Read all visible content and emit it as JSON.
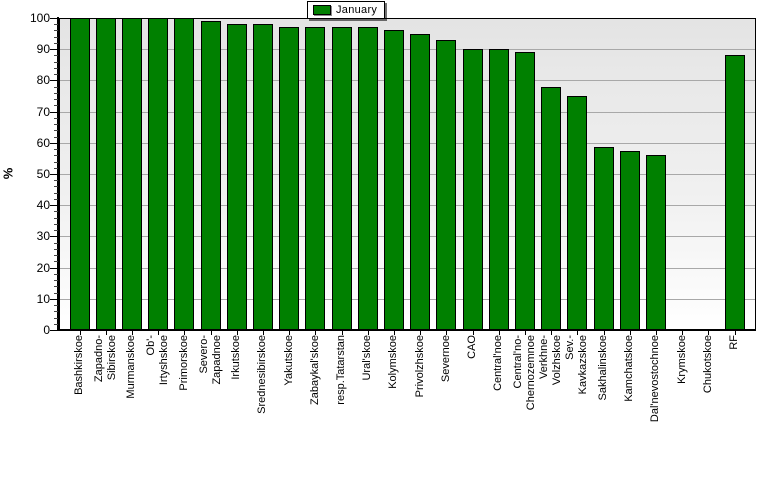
{
  "chart_data": {
    "type": "bar",
    "title": "",
    "ylabel": "%",
    "ylim": [
      0,
      100
    ],
    "ytick_step": 10,
    "grid": true,
    "legend": {
      "position": "top-center",
      "entries": [
        {
          "label": "January",
          "color": "#008000"
        }
      ]
    },
    "categories": [
      "Bashkirskoe",
      "Zapadno-Sibirskoe",
      "Murmanskoe",
      "Ob'-Irtyshskoe",
      "Primorskoe",
      "Severo-Zapadnoe",
      "Irkutskoe",
      "Srednesibirskoe",
      "Yakutskoe",
      "Zabaykal'skoe",
      "resp.Tatarstan",
      "Ural'skoe",
      "Kolymskoe",
      "Privolzhskoe",
      "Severnoe",
      "CAO",
      "Central'noe",
      "Central'no-Chernozemnoe",
      "Verkhne-Volzhskoe",
      "Sev.-Kavkazskoe",
      "Sakhalinskoe",
      "Kamchatskoe",
      "Dal'nevostochnoe",
      "Krymskoe",
      "Chukotskoe",
      "RF"
    ],
    "label_lines": [
      [
        "Bashkirskoe"
      ],
      [
        "Zapadno-",
        "Sibirskoe"
      ],
      [
        "Murmanskoe"
      ],
      [
        "Ob'-",
        "Irtyshskoe"
      ],
      [
        "Primorskoe"
      ],
      [
        "Severo-",
        "Zapadnoe"
      ],
      [
        "Irkutskoe"
      ],
      [
        "Srednesibirskoe"
      ],
      [
        "Yakutskoe"
      ],
      [
        "Zabaykal'skoe"
      ],
      [
        "resp.Tatarstan"
      ],
      [
        "Ural'skoe"
      ],
      [
        "Kolymskoe"
      ],
      [
        "Privolzhskoe"
      ],
      [
        "Severnoe"
      ],
      [
        "CAO"
      ],
      [
        "Central'noe"
      ],
      [
        "Central'no-",
        "Chernozemnoe"
      ],
      [
        "Verkhne-",
        "Volzhskoe"
      ],
      [
        "Sev.-",
        "Kavkazskoe"
      ],
      [
        "Sakhalinskoe"
      ],
      [
        "Kamchatskoe"
      ],
      [
        "Dal'nevostochnoe"
      ],
      [
        "Krymskoe"
      ],
      [
        "Chukotskoe"
      ],
      [
        "RF"
      ]
    ],
    "values": [
      100,
      100,
      100,
      100,
      100,
      99,
      98,
      98,
      97,
      97,
      97,
      97,
      96,
      95,
      93,
      90,
      90,
      89,
      78,
      75,
      58.5,
      57.5,
      56,
      0,
      0,
      88
    ]
  },
  "colors": {
    "bar_fill": "#008000",
    "bar_border": "#000000",
    "grid_line": "#a8a8a8",
    "axis": "#000000",
    "panel_bg_top": "#e4e4e4",
    "panel_bg_bottom": "#ffffff",
    "legend_bg": "#ffffff",
    "legend_border": "#000000",
    "text": "#000000"
  }
}
